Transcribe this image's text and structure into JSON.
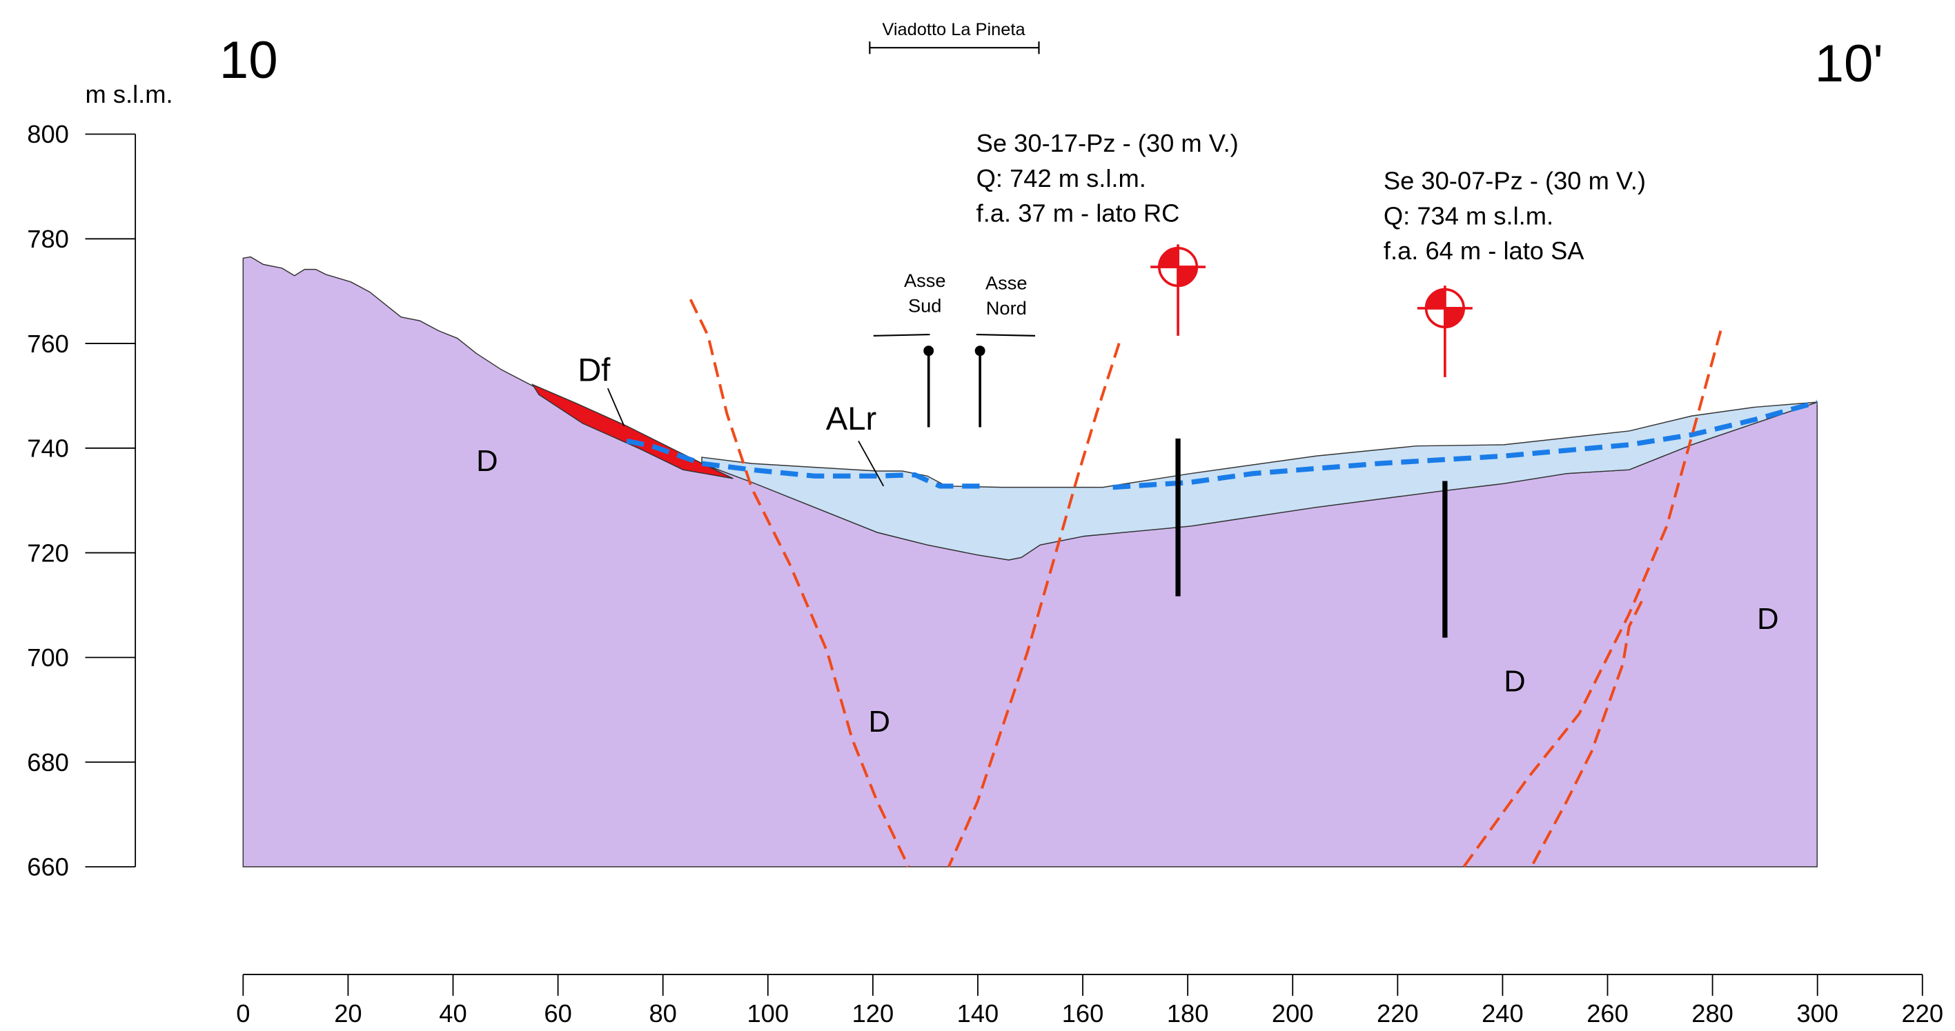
{
  "section": {
    "left_label": "10",
    "right_label": "10'",
    "unit": "m s.l.m."
  },
  "viaduct": "Viadotto La Pineta",
  "y_axis": {
    "ticks": [
      800,
      780,
      760,
      740,
      720,
      700,
      680,
      660
    ]
  },
  "x_axis": {
    "labels": [
      "0",
      "20",
      "40",
      "60",
      "80",
      "100",
      "120",
      "140",
      "160",
      "180",
      "200",
      "220",
      "240",
      "260",
      "280",
      "300",
      "220"
    ]
  },
  "boreholes": [
    {
      "lines": [
        "Se 30-17-Pz - (30 m V.)",
        "Q: 742 m s.l.m.",
        "f.a. 37 m - lato RC"
      ]
    },
    {
      "lines": [
        "Se 30-07-Pz - (30 m V.)",
        "Q: 734 m s.l.m.",
        "f.a. 64 m - lato SA"
      ]
    }
  ],
  "axes_labels": {
    "south": [
      "Asse",
      "Sud"
    ],
    "north": [
      "Asse",
      "Nord"
    ]
  },
  "units": {
    "d1": "D",
    "d2": "D",
    "d3": "D",
    "d4": "D",
    "df": "Df",
    "alr": "ALr"
  }
}
